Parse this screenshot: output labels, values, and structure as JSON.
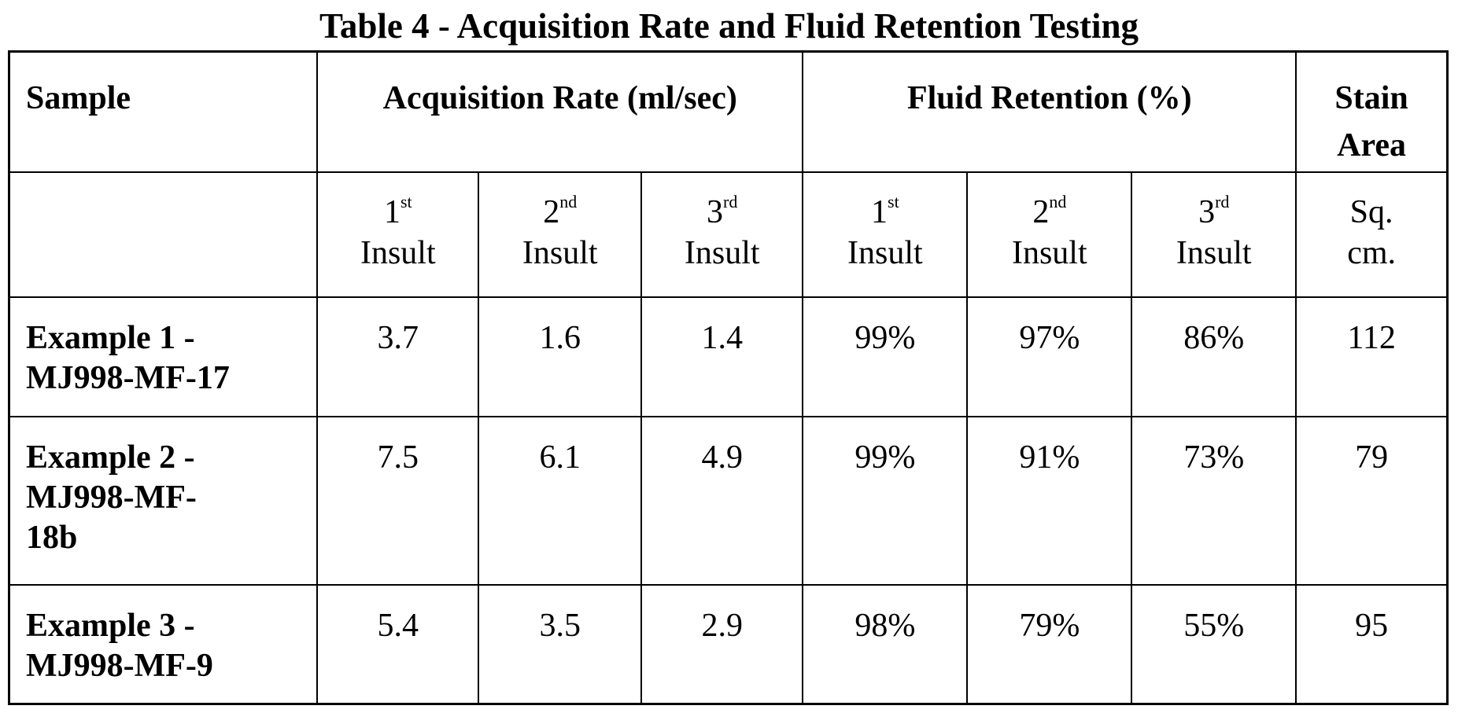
{
  "title": "Table 4 - Acquisition Rate and Fluid Retention Testing",
  "headers": {
    "sample": "Sample",
    "acquisition_rate": "Acquisition Rate (ml/sec)",
    "fluid_retention": "Fluid Retention (%)",
    "stain_area_line1": "Stain",
    "stain_area_line2": "Area"
  },
  "subheaders": {
    "insult_1_num": "1",
    "insult_1_sup": "st",
    "insult_2_num": "2",
    "insult_2_sup": "nd",
    "insult_3_num": "3",
    "insult_3_sup": "rd",
    "insult_word": "Insult",
    "stain_unit_line1": "Sq.",
    "stain_unit_line2": "cm."
  },
  "rows": [
    {
      "sample_line1": "Example 1 -",
      "sample_line2": "MJ998-MF-17",
      "sample_line3": "",
      "acq_1": "3.7",
      "acq_2": "1.6",
      "acq_3": "1.4",
      "ret_1": "99%",
      "ret_2": "97%",
      "ret_3": "86%",
      "stain": "112"
    },
    {
      "sample_line1": "Example 2 -",
      "sample_line2": "MJ998-MF-",
      "sample_line3": "18b",
      "acq_1": "7.5",
      "acq_2": "6.1",
      "acq_3": "4.9",
      "ret_1": "99%",
      "ret_2": "91%",
      "ret_3": "73%",
      "stain": "79"
    },
    {
      "sample_line1": "Example 3 -",
      "sample_line2": "MJ998-MF-9",
      "sample_line3": "",
      "acq_1": "5.4",
      "acq_2": "3.5",
      "acq_3": "2.9",
      "ret_1": "98%",
      "ret_2": "79%",
      "ret_3": "55%",
      "stain": "95"
    }
  ]
}
